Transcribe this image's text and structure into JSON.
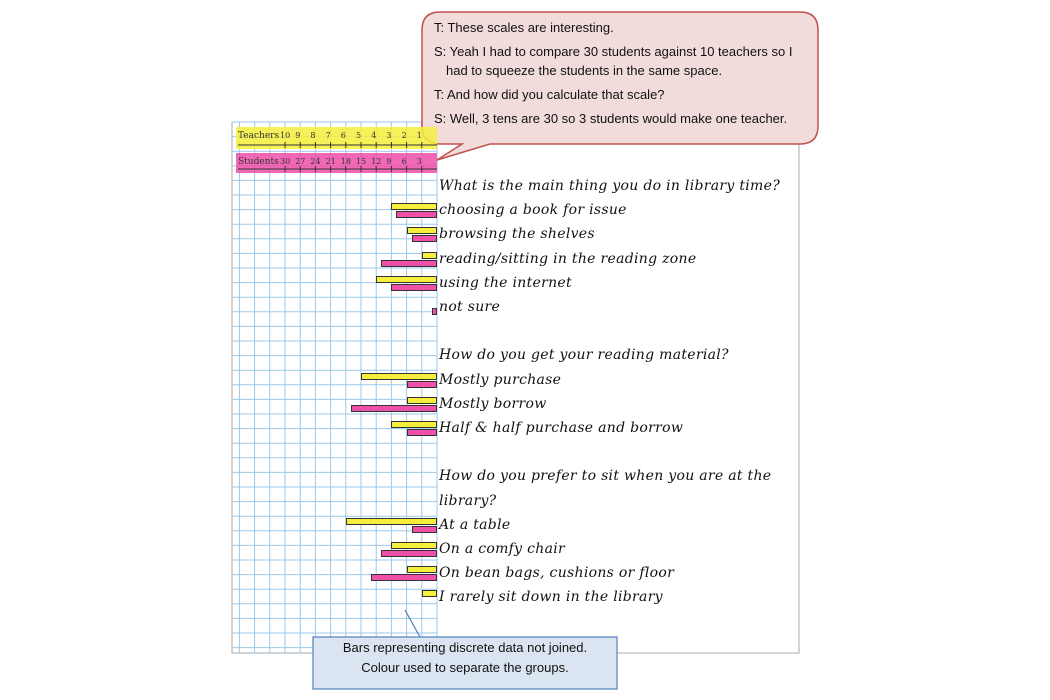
{
  "dialogue": [
    "T: These scales are interesting.",
    "S: Yeah I had to compare 30 students against 10 teachers so I had to squeeze the students in the same space.",
    "T: And how did you calculate that scale?",
    "S: Well, 3 tens are 30 so 3 students would make one teacher."
  ],
  "note": [
    "Bars representing discrete data not joined.",
    "Colour used to separate the groups."
  ],
  "chart_data": {
    "type": "bar",
    "axes": [
      {
        "name": "Teachers",
        "ticks": [
          10,
          9,
          8,
          7,
          6,
          5,
          4,
          3,
          2,
          1
        ]
      },
      {
        "name": "Students",
        "ticks": [
          30,
          27,
          24,
          21,
          18,
          15,
          12,
          9,
          6,
          3
        ]
      }
    ],
    "groups": [
      {
        "question": "What is the main thing you do in library time?",
        "categories": [
          "choosing a book for issue",
          "browsing the shelves",
          "reading/sitting in the reading zone",
          "using the internet",
          "not sure"
        ]
      },
      {
        "question": "How do you get your reading material?",
        "categories": [
          "Mostly purchase",
          "Mostly borrow",
          "Half & half purchase and borrow"
        ]
      },
      {
        "question": "How do you prefer to sit when you are at the library?",
        "categories": [
          "At a table",
          "On a comfy chair",
          "On bean bags, cushions or floor",
          "I rarely sit down in the library"
        ]
      }
    ],
    "series": [
      {
        "name": "Teachers",
        "color": "#f5ee3c",
        "values": [
          3,
          2,
          1,
          4,
          0,
          5,
          2,
          3,
          6,
          3,
          2,
          1
        ]
      },
      {
        "name": "Students",
        "color": "#ee4fa8",
        "values": [
          8,
          5,
          11,
          9,
          1,
          6,
          17,
          6,
          5,
          11,
          13,
          0
        ]
      }
    ]
  }
}
